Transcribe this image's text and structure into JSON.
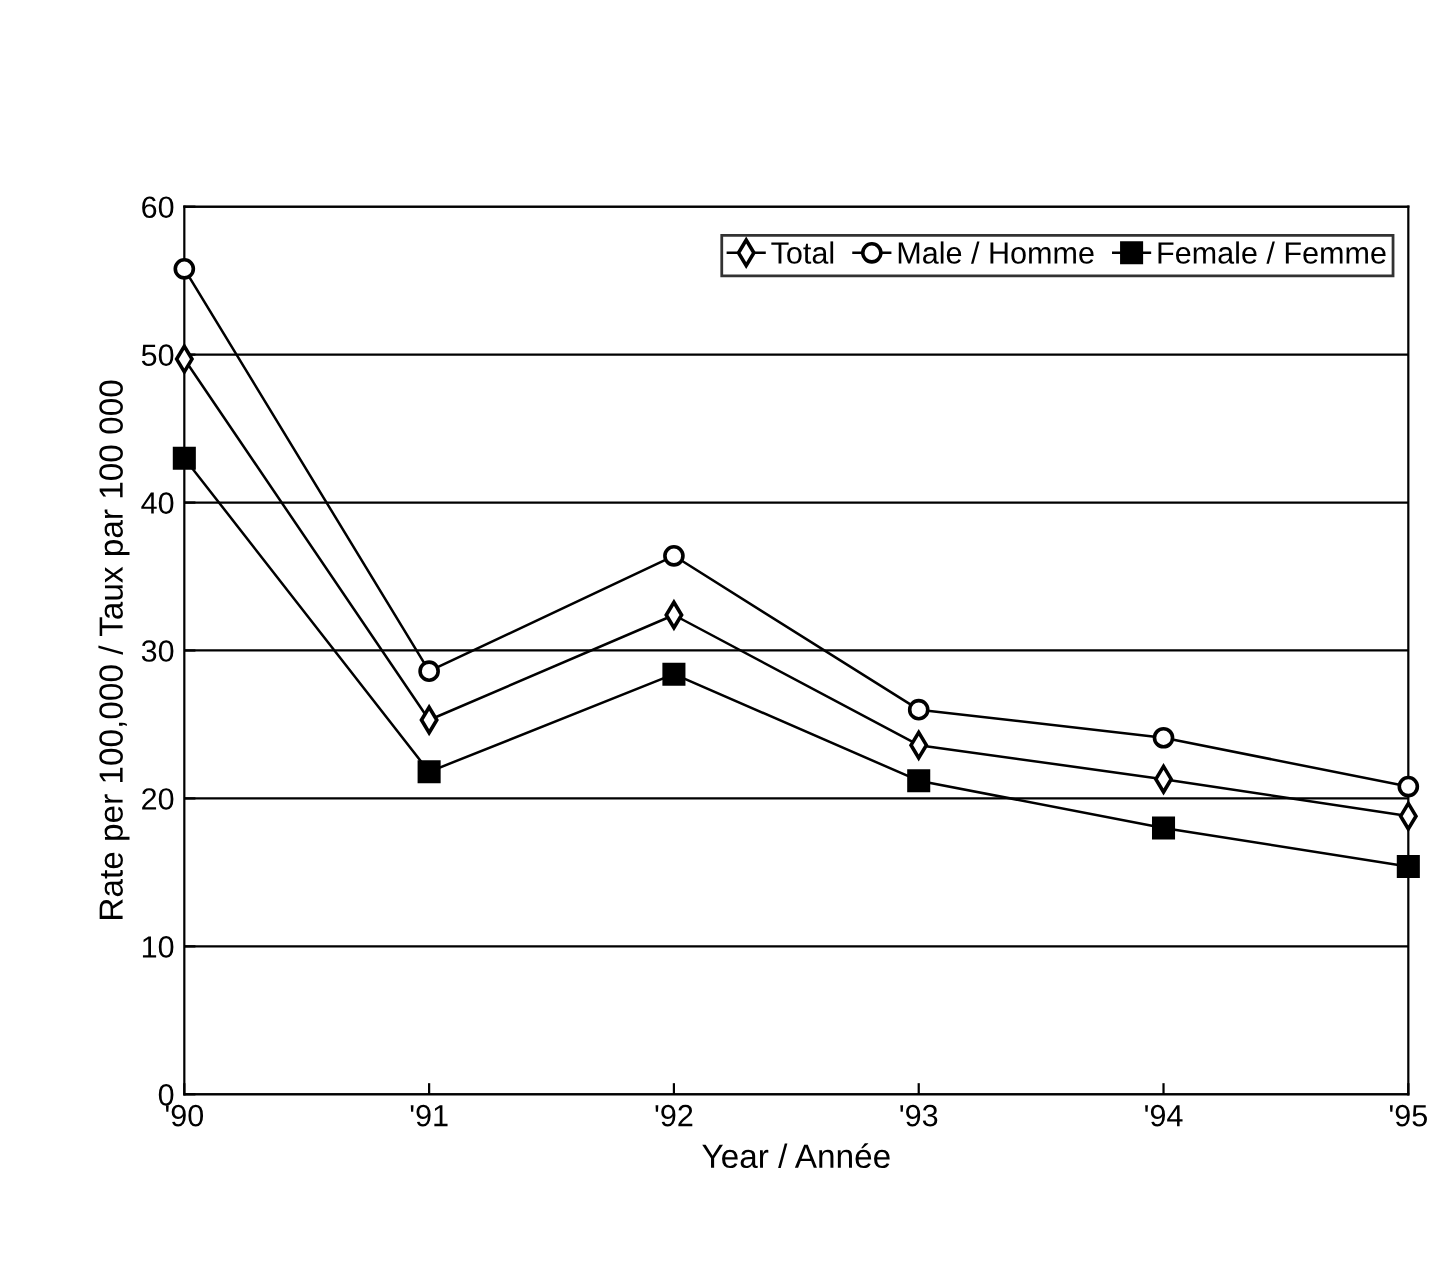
{
  "chart_data": {
    "type": "line",
    "xlabel": "Year / Année",
    "ylabel": "Rate per 100,000 / Taux par 100 000",
    "categories": [
      "'90",
      "'91",
      "'92",
      "'93",
      "'94",
      "'95"
    ],
    "series": [
      {
        "name": "Total",
        "color": "#000000",
        "marker": "diamond",
        "values": [
          49.7,
          25.3,
          32.4,
          23.6,
          21.3,
          18.8
        ]
      },
      {
        "name": "Male / Homme",
        "color": "#000000",
        "marker": "circle",
        "values": [
          55.8,
          28.6,
          36.4,
          26.0,
          24.1,
          20.8
        ]
      },
      {
        "name": "Female / Femme",
        "color": "#000000",
        "marker": "square",
        "values": [
          43.0,
          21.8,
          28.4,
          21.2,
          18.0,
          15.4
        ]
      }
    ],
    "ylim": [
      0,
      60
    ],
    "yticks": [
      0,
      10,
      20,
      30,
      40,
      50,
      60
    ],
    "grid": "y",
    "legend": "top right",
    "line_style": "solid"
  }
}
